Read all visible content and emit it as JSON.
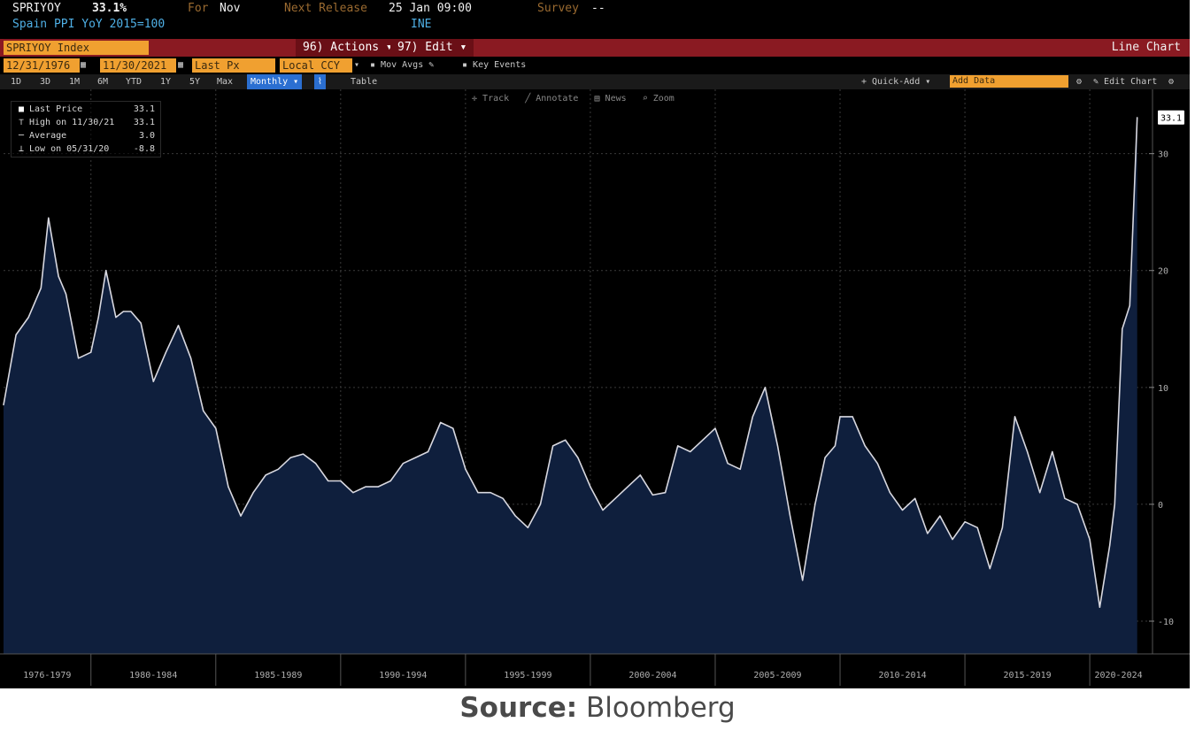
{
  "header": {
    "ticker": "SPRIYOY",
    "last_value": "33.1%",
    "for_label": "For",
    "for_value": "Nov",
    "next_release_label": "Next Release",
    "next_release_value": "25 Jan 09:00",
    "survey_label": "Survey",
    "survey_value": "--",
    "description": "Spain PPI YoY 2015=100",
    "source_code": "INE"
  },
  "toolbar": {
    "security": "SPRIYOY Index",
    "actions_label": "96) Actions",
    "edit_label": "97) Edit",
    "chart_type": "Line Chart",
    "start_date": "12/31/1976",
    "end_date": "11/30/2021",
    "field": "Last Px",
    "field2": "Local CCY",
    "mov_avgs": "Mov Avgs",
    "key_events": "Key Events",
    "periods": [
      "1D",
      "3D",
      "1M",
      "6M",
      "YTD",
      "1Y",
      "5Y",
      "Max"
    ],
    "frequency": "Monthly",
    "table": "Table",
    "quick_add": "+ Quick-Add",
    "add_data": "Add Data",
    "edit_chart": "Edit Chart",
    "tools": [
      "Track",
      "Annotate",
      "News",
      "Zoom"
    ]
  },
  "legend": {
    "last_price_label": "Last Price",
    "last_price_value": "33.1",
    "high_label": "High on 11/30/21",
    "high_value": "33.1",
    "average_label": "Average",
    "average_value": "3.0",
    "low_label": "Low on 05/31/20",
    "low_value": "-8.8"
  },
  "chart_data": {
    "type": "area",
    "series": [
      {
        "name": "SPRIYOY Index",
        "x": [
          1976.5,
          1977.0,
          1977.5,
          1978.0,
          1978.3,
          1978.7,
          1979.0,
          1979.5,
          1980.0,
          1980.3,
          1980.6,
          1981.0,
          1981.3,
          1981.6,
          1982.0,
          1982.5,
          1983.0,
          1983.5,
          1984.0,
          1984.5,
          1985.0,
          1985.5,
          1986.0,
          1986.5,
          1987.0,
          1987.5,
          1988.0,
          1988.5,
          1989.0,
          1989.5,
          1990.0,
          1990.5,
          1991.0,
          1991.5,
          1992.0,
          1992.5,
          1993.0,
          1993.5,
          1994.0,
          1994.5,
          1995.0,
          1995.5,
          1996.0,
          1996.5,
          1997.0,
          1997.5,
          1998.0,
          1998.5,
          1999.0,
          1999.5,
          2000.0,
          2000.5,
          2001.0,
          2001.5,
          2002.0,
          2002.5,
          2003.0,
          2003.5,
          2004.0,
          2004.5,
          2005.0,
          2005.5,
          2006.0,
          2006.5,
          2007.0,
          2007.5,
          2008.0,
          2008.5,
          2009.0,
          2009.4,
          2009.8,
          2010.0,
          2010.5,
          2011.0,
          2011.5,
          2012.0,
          2012.5,
          2013.0,
          2013.5,
          2014.0,
          2014.5,
          2015.0,
          2015.5,
          2016.0,
          2016.5,
          2017.0,
          2017.5,
          2018.0,
          2018.5,
          2019.0,
          2019.5,
          2020.0,
          2020.4,
          2020.8,
          2021.0,
          2021.3,
          2021.6,
          2021.9
        ],
        "values": [
          8.5,
          14.5,
          16.0,
          18.5,
          24.5,
          19.5,
          18.0,
          12.5,
          13.0,
          16.0,
          20.0,
          16.0,
          16.5,
          16.5,
          15.5,
          10.5,
          13.0,
          15.3,
          12.5,
          8.0,
          6.5,
          1.5,
          -1.0,
          1.0,
          2.5,
          3.0,
          4.0,
          4.3,
          3.5,
          2.0,
          2.0,
          1.0,
          1.5,
          1.5,
          2.0,
          3.5,
          4.0,
          4.5,
          7.0,
          6.5,
          3.0,
          1.0,
          1.0,
          0.5,
          -1.0,
          -2.0,
          0.0,
          5.0,
          5.5,
          4.0,
          1.5,
          -0.5,
          0.5,
          1.5,
          2.5,
          0.8,
          1.0,
          5.0,
          4.5,
          5.5,
          6.5,
          3.5,
          3.0,
          7.5,
          10.0,
          5.0,
          -1.0,
          -6.5,
          0.0,
          4.0,
          5.0,
          7.5,
          7.5,
          5.0,
          3.5,
          1.0,
          -0.5,
          0.5,
          -2.5,
          -1.0,
          -3.0,
          -1.5,
          -2.0,
          -5.5,
          -2.0,
          7.5,
          4.5,
          1.0,
          4.5,
          0.5,
          0.0,
          -3.0,
          -8.8,
          -3.5,
          0.0,
          15.0,
          17.0,
          33.1
        ]
      }
    ],
    "xlim": [
      1976.5,
      2022.3
    ],
    "ylim": [
      -12.8,
      35.5
    ],
    "y_ticks": [
      -10,
      0,
      10,
      20,
      30
    ],
    "x_period_labels": [
      "1976-1979",
      "1980-1984",
      "1985-1989",
      "1990-1994",
      "1995-1999",
      "2000-2004",
      "2005-2009",
      "2010-2014",
      "2015-2019",
      "2020-2024"
    ],
    "last_value_tag": "33.1",
    "colors": {
      "background": "#000000",
      "fill": "#0f1f3d",
      "line": "#d8d8e0",
      "grid": "#3a3a3a",
      "axis_text": "#b0b0b0"
    },
    "grid": true,
    "legend_position": "top-left"
  },
  "footer": {
    "source_label": "Source:",
    "source_value": "Bloomberg"
  }
}
